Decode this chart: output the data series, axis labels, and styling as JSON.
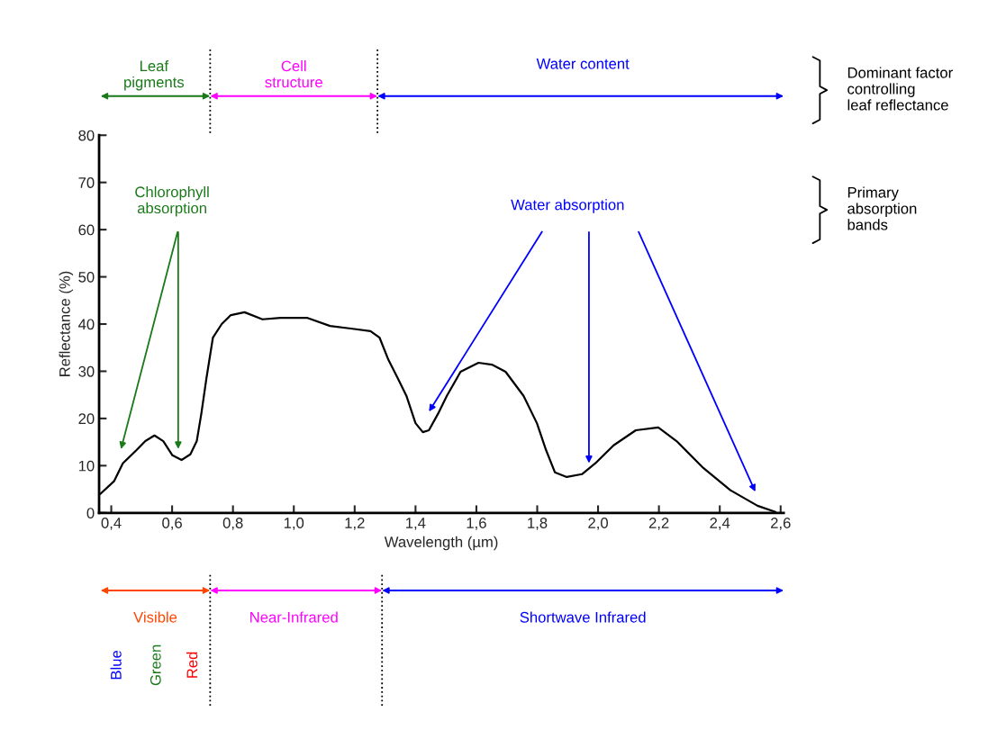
{
  "chart_data": {
    "type": "line",
    "xlabel": "Wavelength (µm)",
    "ylabel": "Reflectance (%)",
    "x": [
      0.364,
      0.409,
      0.438,
      0.483,
      0.512,
      0.542,
      0.571,
      0.601,
      0.631,
      0.66,
      0.681,
      0.696,
      0.713,
      0.734,
      0.763,
      0.793,
      0.838,
      0.897,
      0.956,
      1.045,
      1.119,
      1.193,
      1.252,
      1.282,
      1.311,
      1.341,
      1.37,
      1.4,
      1.424,
      1.444,
      1.474,
      1.503,
      1.548,
      1.607,
      1.651,
      1.696,
      1.755,
      1.799,
      1.829,
      1.858,
      1.897,
      1.947,
      1.991,
      2.051,
      2.124,
      2.198,
      2.258,
      2.346,
      2.435,
      2.524,
      2.583
    ],
    "series": [
      {
        "color": "#000000",
        "values": [
          4.0,
          6.7,
          10.5,
          13.3,
          15.2,
          16.4,
          15.2,
          12.2,
          11.2,
          12.4,
          15.2,
          21,
          28.6,
          37.1,
          40,
          41.9,
          42.5,
          41,
          41.3,
          41.3,
          39.6,
          39,
          38.5,
          37.1,
          32.4,
          28.6,
          24.8,
          19,
          17.1,
          17.5,
          21,
          24.8,
          29.9,
          31.8,
          31.4,
          29.9,
          24.8,
          19,
          13.3,
          8.6,
          7.6,
          8.2,
          10.5,
          14.3,
          17.5,
          18.1,
          15.2,
          9.5,
          4.8,
          1.5,
          0.2
        ]
      }
    ],
    "xlim": [
      0.36,
      2.61
    ],
    "xticks": [
      {
        "value": 0.4,
        "label": "0,4"
      },
      {
        "value": 0.6,
        "label": "0,6"
      },
      {
        "value": 0.8,
        "label": "0,8"
      },
      {
        "value": 1.0,
        "label": "1,0"
      },
      {
        "value": 1.2,
        "label": "1,2"
      },
      {
        "value": 1.4,
        "label": "1,4"
      },
      {
        "value": 1.6,
        "label": "1,6"
      },
      {
        "value": 1.8,
        "label": "1,8"
      },
      {
        "value": 2.0,
        "label": "2,0"
      },
      {
        "value": 2.2,
        "label": "2,2"
      },
      {
        "value": 2.4,
        "label": "2,4"
      },
      {
        "value": 2.6,
        "label": "2,6"
      }
    ],
    "ylim": [
      0,
      80
    ],
    "yticks": [
      0,
      10,
      20,
      30,
      40,
      50,
      60,
      70,
      80
    ],
    "grid": false,
    "marker": "none",
    "line_style": "solid",
    "legend": false,
    "annotations": [
      "Leaf\npigments",
      "Cell\nstructure",
      "Water content",
      "Dominant factor\ncontrolling\nleaf reflectance",
      "Primary\nabsorption\nbands",
      "Chlorophyll\nabsorption",
      "Water absorption",
      "Visible",
      "Near-Infrared",
      "Shortwave Infrared",
      "Blue",
      "Green",
      "Red"
    ]
  }
}
